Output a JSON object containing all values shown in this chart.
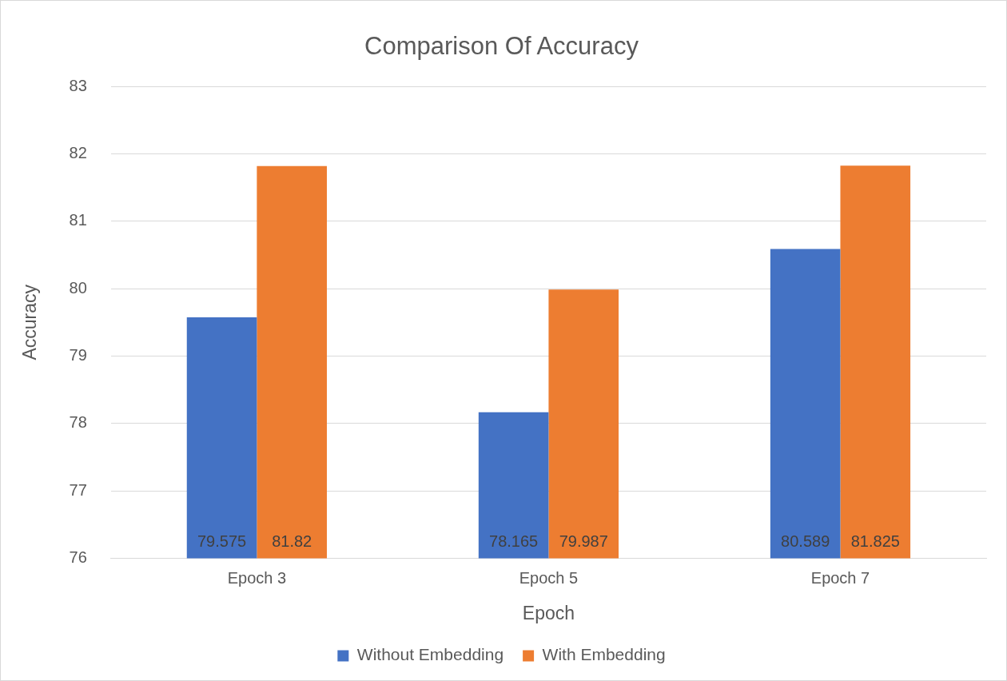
{
  "chart_data": {
    "type": "bar",
    "title": "Comparison Of Accuracy",
    "xlabel": "Epoch",
    "ylabel": "Accuracy",
    "categories": [
      "Epoch 3",
      "Epoch 5",
      "Epoch 7"
    ],
    "series": [
      {
        "name": "Without Embedding",
        "color": "#4472c4",
        "values": [
          79.575,
          78.165,
          80.589
        ]
      },
      {
        "name": "With Embedding",
        "color": "#ed7d31",
        "values": [
          81.82,
          79.987,
          81.825
        ]
      }
    ],
    "ylim": [
      76,
      83
    ],
    "yticks": [
      76,
      77,
      78,
      79,
      80,
      81,
      82,
      83
    ],
    "grid": "y",
    "legend": "bottom",
    "data_labels": true
  }
}
